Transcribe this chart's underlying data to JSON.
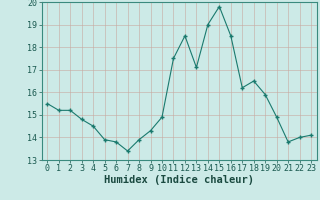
{
  "x": [
    0,
    1,
    2,
    3,
    4,
    5,
    6,
    7,
    8,
    9,
    10,
    11,
    12,
    13,
    14,
    15,
    16,
    17,
    18,
    19,
    20,
    21,
    22,
    23
  ],
  "y": [
    15.5,
    15.2,
    15.2,
    14.8,
    14.5,
    13.9,
    13.8,
    13.4,
    13.9,
    14.3,
    14.9,
    17.5,
    18.5,
    17.1,
    19.0,
    19.8,
    18.5,
    16.2,
    16.5,
    15.9,
    14.9,
    13.8,
    14.0,
    14.1
  ],
  "line_color": "#1a7a6e",
  "marker_color": "#1a7a6e",
  "bg_color": "#cceae7",
  "grid_color": "#b0d8d4",
  "xlabel": "Humidex (Indice chaleur)",
  "xlim": [
    -0.5,
    23.5
  ],
  "ylim": [
    13,
    20
  ],
  "yticks": [
    13,
    14,
    15,
    16,
    17,
    18,
    19,
    20
  ],
  "xticks": [
    0,
    1,
    2,
    3,
    4,
    5,
    6,
    7,
    8,
    9,
    10,
    11,
    12,
    13,
    14,
    15,
    16,
    17,
    18,
    19,
    20,
    21,
    22,
    23
  ],
  "axis_fontsize": 6.5,
  "tick_fontsize": 6.0,
  "xlabel_fontsize": 7.5
}
